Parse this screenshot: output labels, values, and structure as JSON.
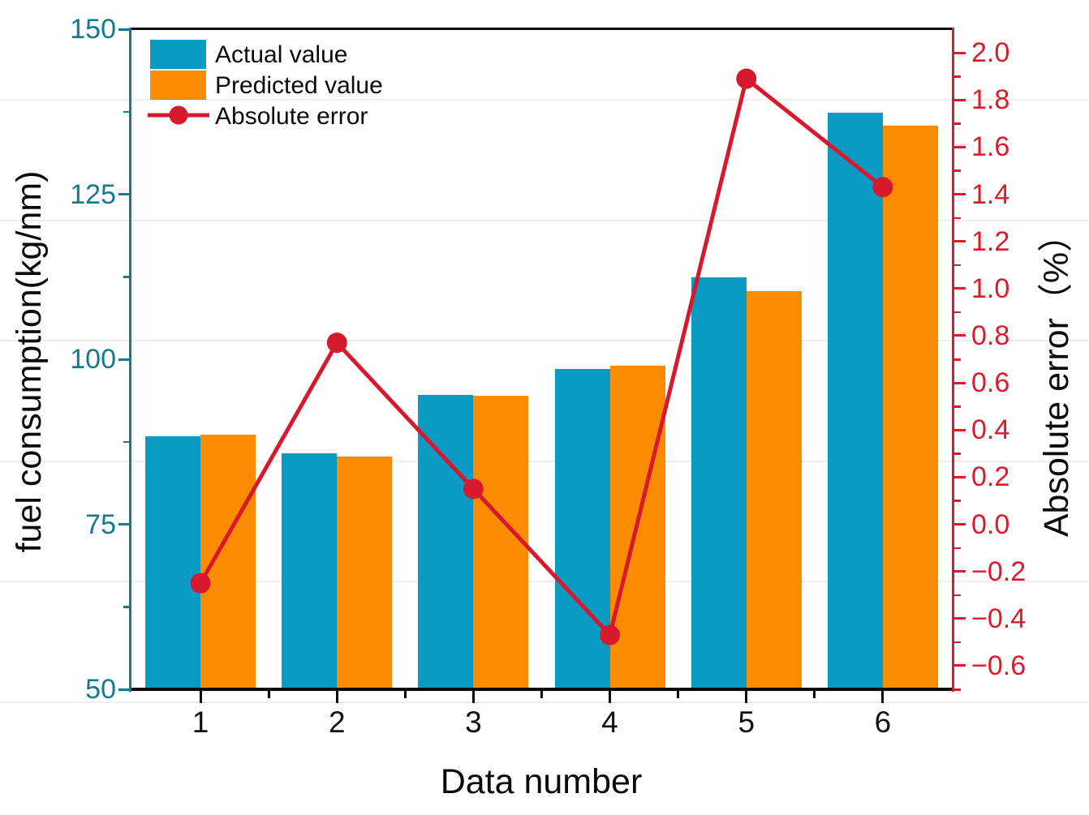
{
  "chart_data": {
    "type": "combo-bar-line",
    "categories": [
      "1",
      "2",
      "3",
      "4",
      "5",
      "6"
    ],
    "series": [
      {
        "name": "Actual value",
        "type": "bar",
        "axis": "left",
        "color": "#0a9ac2",
        "values": [
          88.3,
          85.8,
          94.6,
          98.5,
          112.4,
          137.4
        ]
      },
      {
        "name": "Predicted value",
        "type": "bar",
        "axis": "left",
        "color": "#fb8b00",
        "values": [
          88.6,
          85.2,
          94.5,
          99.0,
          110.3,
          135.4
        ]
      },
      {
        "name": "Absolute error",
        "type": "line",
        "axis": "right",
        "color": "#d7192d",
        "values": [
          -0.25,
          0.77,
          0.15,
          -0.47,
          1.89,
          1.43
        ]
      }
    ],
    "x_axis": {
      "label": "Data number",
      "tick_labels": [
        "1",
        "2",
        "3",
        "4",
        "5",
        "6"
      ],
      "color": "#000000"
    },
    "left_axis": {
      "label": "fuel consumption(kg/nm)",
      "color": "#16798f",
      "range": [
        50,
        150
      ],
      "major_ticks": [
        50,
        75,
        100,
        125,
        150
      ],
      "tick_labels": [
        "50",
        "75",
        "100",
        "125",
        "150"
      ],
      "minor_ticks": [
        62.5,
        87.5,
        112.5,
        137.5
      ]
    },
    "right_axis": {
      "label": "Absolute error（%）",
      "color": "#dc1b2a",
      "range": [
        -0.7,
        2.1
      ],
      "major_ticks": [
        2.0,
        1.8,
        1.6,
        1.4,
        1.2,
        1.0,
        0.8,
        0.6,
        0.4,
        0.2,
        0.0,
        -0.2,
        -0.4,
        -0.6
      ],
      "tick_labels": [
        "2.0",
        "1.8",
        "1.6",
        "1.4",
        "1.2",
        "1.0",
        "0.8",
        "0.6",
        "0.4",
        "0.2",
        "0.0",
        "−0.2",
        "−0.4",
        "−0.6"
      ],
      "minor_ticks": [
        1.9,
        1.7,
        1.5,
        1.3,
        1.1,
        0.9,
        0.7,
        0.5,
        0.3,
        0.1,
        -0.1,
        -0.3,
        -0.5,
        -0.7
      ]
    },
    "legend": {
      "position": "top-left",
      "entries": [
        "Actual value",
        "Predicted value",
        "Absolute error"
      ]
    },
    "grid": "faint horizontal stripes, full width"
  }
}
